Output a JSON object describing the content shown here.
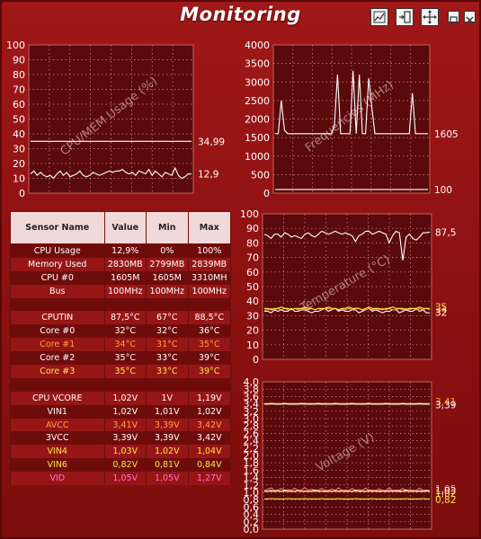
{
  "window": {
    "title": "Monitoring",
    "buttons": [
      "chart-icon",
      "dock-icon",
      "move-icon",
      "minimize-icon",
      "close-icon"
    ]
  },
  "colors": {
    "accent": "#8e1212",
    "table_header": "#f2d9d9",
    "yellow": "#ffe44d",
    "orange": "#ffa040",
    "pink": "#ff70d0"
  },
  "charts": [
    {
      "type": "line",
      "title": "CPU/MEM Usage (%)",
      "ylim": [
        0,
        100
      ],
      "yticks": [
        "0",
        "10",
        "20",
        "30",
        "40",
        "50",
        "60",
        "70",
        "80",
        "90",
        "100"
      ],
      "value_labels": [
        "34,99",
        "12,9"
      ],
      "series": [
        {
          "color": "#ffffff",
          "values": [
            35,
            35,
            35,
            35,
            35,
            35,
            35,
            35,
            35,
            35,
            35,
            35,
            35,
            35,
            35,
            35,
            35,
            35,
            35,
            35,
            35,
            35,
            35,
            35,
            35,
            35,
            35,
            35,
            35,
            35,
            35,
            35,
            35,
            35,
            35,
            35,
            35,
            35,
            35,
            35,
            35,
            35,
            35,
            35,
            35,
            35,
            35,
            35,
            35,
            35
          ]
        },
        {
          "color": "#ffffff",
          "values": [
            13,
            15,
            12,
            14,
            12,
            11,
            12,
            10,
            13,
            15,
            12,
            14,
            11,
            12,
            13,
            15,
            12,
            11,
            12,
            14,
            13,
            12,
            13,
            14,
            15,
            14,
            15,
            15,
            16,
            14,
            13,
            14,
            12,
            15,
            14,
            13,
            16,
            12,
            15,
            13,
            11,
            14,
            13,
            12,
            17,
            12,
            10,
            11,
            13,
            12.9
          ]
        }
      ]
    },
    {
      "type": "line",
      "title": "Frequencies (MHz)",
      "ylim": [
        0,
        4000
      ],
      "yticks": [
        "0",
        "500",
        "1000",
        "1500",
        "2000",
        "2500",
        "3000",
        "3500",
        "4000"
      ],
      "value_labels": [
        "1605",
        "100"
      ],
      "series": [
        {
          "color": "#ffffff",
          "values": [
            1605,
            1605,
            2500,
            1700,
            1605,
            1605,
            1605,
            1605,
            1605,
            1605,
            1605,
            1605,
            1605,
            1605,
            1605,
            1605,
            1605,
            1605,
            1605,
            1800,
            3200,
            1605,
            1605,
            1605,
            1605,
            3300,
            1605,
            3200,
            1605,
            1605,
            3100,
            2300,
            1605,
            1605,
            1605,
            1605,
            1605,
            1605,
            1605,
            1605,
            1605,
            1605,
            1605,
            1605,
            2700,
            1605,
            1605,
            1605,
            1605,
            1605
          ]
        },
        {
          "color": "#ffffff",
          "values": [
            100,
            100,
            100,
            100,
            100,
            100,
            100,
            100,
            100,
            100,
            100,
            100,
            100,
            100,
            100,
            100,
            100,
            100,
            100,
            100,
            100,
            100,
            100,
            100,
            100,
            100,
            100,
            100,
            100,
            100,
            100,
            100,
            100,
            100,
            100,
            100,
            100,
            100,
            100,
            100,
            100,
            100,
            100,
            100,
            100,
            100,
            100,
            100,
            100,
            100
          ]
        }
      ]
    },
    {
      "type": "line",
      "title": "Temperature (°C)",
      "ylim": [
        0,
        100
      ],
      "yticks": [
        "0",
        "10",
        "20",
        "30",
        "40",
        "50",
        "60",
        "70",
        "80",
        "90",
        "100"
      ],
      "value_labels": [
        "87,5",
        "35",
        "34",
        "32"
      ],
      "series": [
        {
          "color": "#ffffff",
          "values": [
            86,
            85,
            83,
            86,
            86,
            84,
            87,
            86,
            84,
            85,
            84,
            83,
            86,
            87,
            85,
            84,
            86,
            88,
            87,
            86,
            87,
            88,
            87,
            86,
            87,
            86,
            85,
            81,
            85,
            86,
            88,
            88,
            86,
            87,
            88,
            87,
            86,
            80,
            85,
            88,
            87,
            68,
            84,
            86,
            83,
            82,
            84,
            87,
            87,
            87.5
          ]
        },
        {
          "color": "#ffffff",
          "values": [
            33,
            33,
            32,
            34,
            33,
            34,
            33,
            33,
            35,
            33,
            33,
            34,
            34,
            33,
            32,
            33,
            33,
            34,
            35,
            33,
            34,
            35,
            33,
            34,
            33,
            33,
            34,
            34,
            32,
            33,
            34,
            35,
            33,
            34,
            33,
            32,
            33,
            33,
            34,
            34,
            32,
            33,
            34,
            33,
            33,
            35,
            33,
            34,
            32,
            32
          ]
        },
        {
          "color": "#ffa040",
          "values": [
            34,
            34,
            35,
            34,
            35,
            34,
            35,
            34,
            34,
            35,
            34,
            35,
            35,
            34,
            35,
            34,
            35,
            34,
            35,
            35,
            34,
            35,
            34,
            35,
            34,
            35,
            34,
            35,
            35,
            34,
            34,
            35,
            34,
            35,
            34,
            35,
            34,
            35,
            34,
            34,
            35,
            34,
            35,
            34,
            35,
            34,
            35,
            34,
            35,
            34
          ]
        },
        {
          "color": "#ffe44d",
          "values": [
            35,
            35,
            34,
            35,
            35,
            36,
            35,
            35,
            34,
            35,
            35,
            35,
            36,
            35,
            35,
            34,
            35,
            35,
            35,
            36,
            35,
            35,
            34,
            35,
            35,
            36,
            35,
            35,
            35,
            34,
            35,
            36,
            35,
            35,
            35,
            34,
            35,
            35,
            36,
            35,
            35,
            35,
            34,
            35,
            35,
            35,
            36,
            35,
            35,
            35
          ]
        }
      ]
    },
    {
      "type": "line",
      "title": "Voltage (V)",
      "ylim": [
        0,
        4
      ],
      "yticks": [
        "0,0",
        "0,2",
        "0,4",
        "0,6",
        "0,8",
        "1,0",
        "1,2",
        "1,4",
        "1,6",
        "1,8",
        "2,0",
        "2,2",
        "2,4",
        "2,6",
        "2,8",
        "3,0",
        "3,2",
        "3,4",
        "3,6",
        "3,8",
        "4,0"
      ],
      "value_labels": [
        "3,41",
        "3,39",
        "1,05",
        "1,03",
        "1,02",
        "0,82"
      ],
      "series": [
        {
          "color": "#ffa040",
          "values": [
            3.41,
            3.41,
            3.42,
            3.41,
            3.41,
            3.41,
            3.42,
            3.41,
            3.41,
            3.41,
            3.41,
            3.42,
            3.41,
            3.41,
            3.41,
            3.41,
            3.42,
            3.41,
            3.41,
            3.41,
            3.41,
            3.42,
            3.41,
            3.41,
            3.41,
            3.41,
            3.42,
            3.41,
            3.41,
            3.41,
            3.41,
            3.42,
            3.41,
            3.41,
            3.41,
            3.41,
            3.42,
            3.41,
            3.41,
            3.41,
            3.41,
            3.42,
            3.41,
            3.41,
            3.41,
            3.41,
            3.42,
            3.41,
            3.41,
            3.41
          ]
        },
        {
          "color": "#ffffff",
          "values": [
            3.39,
            3.39,
            3.4,
            3.39,
            3.39,
            3.39,
            3.4,
            3.39,
            3.39,
            3.39,
            3.39,
            3.4,
            3.39,
            3.39,
            3.39,
            3.39,
            3.4,
            3.39,
            3.39,
            3.39,
            3.39,
            3.4,
            3.39,
            3.39,
            3.39,
            3.39,
            3.4,
            3.39,
            3.39,
            3.39,
            3.39,
            3.4,
            3.39,
            3.39,
            3.39,
            3.39,
            3.4,
            3.39,
            3.39,
            3.39,
            3.39,
            3.4,
            3.39,
            3.39,
            3.39,
            3.39,
            3.4,
            3.39,
            3.39,
            3.39
          ]
        },
        {
          "color": "#ff70d0",
          "values": [
            1.05,
            1.08,
            1.12,
            1.05,
            1.06,
            1.1,
            1.05,
            1.07,
            1.05,
            1.11,
            1.05,
            1.06,
            1.13,
            1.05,
            1.08,
            1.05,
            1.06,
            1.1,
            1.05,
            1.05,
            1.09,
            1.05,
            1.12,
            1.05,
            1.06,
            1.05,
            1.1,
            1.05,
            1.07,
            1.05,
            1.11,
            1.05,
            1.06,
            1.05,
            1.09,
            1.05,
            1.05,
            1.12,
            1.05,
            1.06,
            1.05,
            1.1,
            1.05,
            1.07,
            1.05,
            1.05,
            1.11,
            1.05,
            1.06,
            1.05
          ]
        },
        {
          "color": "#ffffff",
          "values": [
            1.02,
            1.03,
            1.05,
            1.02,
            1.04,
            1.02,
            1.06,
            1.02,
            1.03,
            1.02,
            1.05,
            1.02,
            1.04,
            1.02,
            1.03,
            1.06,
            1.02,
            1.04,
            1.02,
            1.03,
            1.02,
            1.05,
            1.02,
            1.04,
            1.02,
            1.03,
            1.02,
            1.06,
            1.02,
            1.03,
            1.02,
            1.05,
            1.02,
            1.04,
            1.02,
            1.03,
            1.02,
            1.05,
            1.02,
            1.04,
            1.02,
            1.03,
            1.06,
            1.02,
            1.04,
            1.02,
            1.03,
            1.02,
            1.05,
            1.02
          ]
        },
        {
          "color": "#ffe44d",
          "values": [
            1.03,
            1.03,
            1.03,
            1.03,
            1.04,
            1.03,
            1.03,
            1.03,
            1.03,
            1.03,
            1.04,
            1.03,
            1.03,
            1.03,
            1.03,
            1.03,
            1.04,
            1.03,
            1.03,
            1.03,
            1.03,
            1.03,
            1.04,
            1.03,
            1.03,
            1.03,
            1.03,
            1.03,
            1.04,
            1.03,
            1.03,
            1.03,
            1.03,
            1.03,
            1.04,
            1.03,
            1.03,
            1.03,
            1.03,
            1.03,
            1.04,
            1.03,
            1.03,
            1.03,
            1.03,
            1.03,
            1.04,
            1.03,
            1.03,
            1.03
          ]
        },
        {
          "color": "#ffe44d",
          "values": [
            0.82,
            0.82,
            0.83,
            0.82,
            0.82,
            0.82,
            0.82,
            0.83,
            0.82,
            0.82,
            0.82,
            0.82,
            0.83,
            0.82,
            0.82,
            0.82,
            0.82,
            0.83,
            0.82,
            0.82,
            0.82,
            0.82,
            0.83,
            0.82,
            0.82,
            0.82,
            0.82,
            0.83,
            0.82,
            0.82,
            0.82,
            0.82,
            0.83,
            0.82,
            0.82,
            0.82,
            0.82,
            0.83,
            0.82,
            0.82,
            0.82,
            0.82,
            0.83,
            0.82,
            0.82,
            0.82,
            0.82,
            0.83,
            0.82,
            0.82
          ]
        }
      ]
    }
  ],
  "table": {
    "headers": [
      "Sensor Name",
      "Value",
      "Min",
      "Max"
    ],
    "rows": [
      {
        "cells": [
          "CPU Usage",
          "12,9%",
          "0%",
          "100%"
        ],
        "color": "#ffffff"
      },
      {
        "cells": [
          "Memory Used",
          "2830MB",
          "2799MB",
          "2839MB"
        ],
        "color": "#ffffff"
      },
      {
        "cells": [
          "CPU #0",
          "1605M",
          "1605M",
          "3310MH"
        ],
        "color": "#ffffff"
      },
      {
        "cells": [
          "Bus",
          "100MHz",
          "100MHz",
          "100MHz"
        ],
        "color": "#ffffff"
      },
      {
        "cells": [
          "",
          "",
          "",
          ""
        ],
        "color": "#ffffff"
      },
      {
        "cells": [
          "CPUTIN",
          "87,5°C",
          "67°C",
          "88,5°C"
        ],
        "color": "#ffffff"
      },
      {
        "cells": [
          "Core #0",
          "32°C",
          "32°C",
          "36°C"
        ],
        "color": "#ffffff"
      },
      {
        "cells": [
          "Core #1",
          "34°C",
          "31°C",
          "35°C"
        ],
        "color": "#ffa040"
      },
      {
        "cells": [
          "Core #2",
          "35°C",
          "33°C",
          "39°C"
        ],
        "color": "#ffffff"
      },
      {
        "cells": [
          "Core #3",
          "35°C",
          "33°C",
          "39°C"
        ],
        "color": "#ffe44d"
      },
      {
        "cells": [
          "",
          "",
          "",
          ""
        ],
        "color": "#ffffff"
      },
      {
        "cells": [
          "CPU VCORE",
          "1,02V",
          "1V",
          "1,19V"
        ],
        "color": "#ffffff"
      },
      {
        "cells": [
          "VIN1",
          "1,02V",
          "1,01V",
          "1,02V"
        ],
        "color": "#ffffff"
      },
      {
        "cells": [
          "AVCC",
          "3,41V",
          "3,39V",
          "3,42V"
        ],
        "color": "#ffa040"
      },
      {
        "cells": [
          "3VCC",
          "3,39V",
          "3,39V",
          "3,42V"
        ],
        "color": "#ffffff"
      },
      {
        "cells": [
          "VIN4",
          "1,03V",
          "1,02V",
          "1,04V"
        ],
        "color": "#ffe44d"
      },
      {
        "cells": [
          "VIN6",
          "0,82V",
          "0,81V",
          "0,84V"
        ],
        "color": "#ffe44d"
      },
      {
        "cells": [
          "VID",
          "1,05V",
          "1,05V",
          "1,27V"
        ],
        "color": "#ff70d0"
      }
    ]
  }
}
